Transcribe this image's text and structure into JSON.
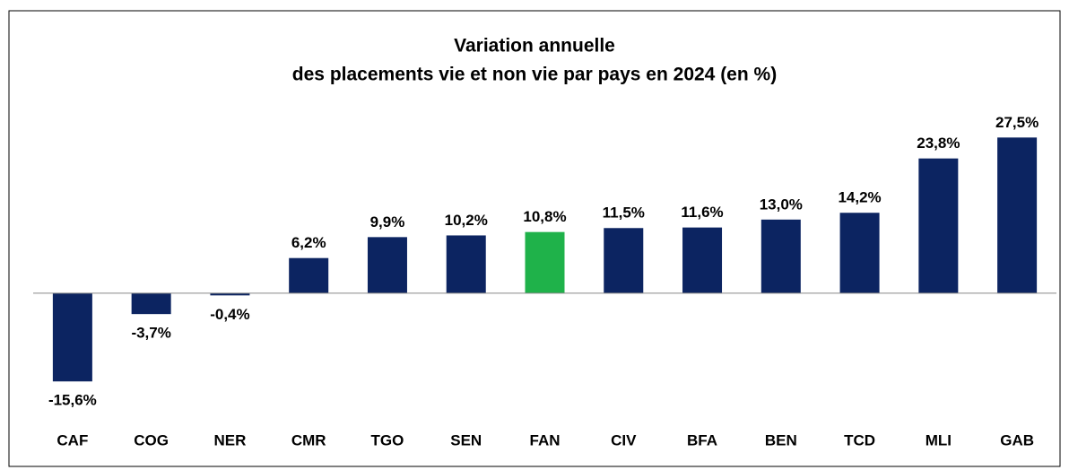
{
  "chart_data": {
    "type": "bar",
    "title": [
      "Variation annuelle",
      "des placements vie et non vie par pays en 2024 (en %)"
    ],
    "categories": [
      "CAF",
      "COG",
      "NER",
      "CMR",
      "TGO",
      "SEN",
      "FAN",
      "CIV",
      "BFA",
      "BEN",
      "TCD",
      "MLI",
      "GAB"
    ],
    "values": [
      -15.6,
      -3.7,
      -0.4,
      6.2,
      9.9,
      10.2,
      10.8,
      11.5,
      11.6,
      13.0,
      14.2,
      23.8,
      27.5
    ],
    "value_labels": [
      "-15,6%",
      "-3,7%",
      "-0,4%",
      "6,2%",
      "9,9%",
      "10,2%",
      "10,8%",
      "11,5%",
      "11,6%",
      "13,0%",
      "14,2%",
      "23,8%",
      "27,5%"
    ],
    "colors": [
      "#0c2461",
      "#0c2461",
      "#0c2461",
      "#0c2461",
      "#0c2461",
      "#0c2461",
      "#1fb24a",
      "#0c2461",
      "#0c2461",
      "#0c2461",
      "#0c2461",
      "#0c2461",
      "#0c2461"
    ],
    "ylim": [
      -20,
      35
    ]
  }
}
